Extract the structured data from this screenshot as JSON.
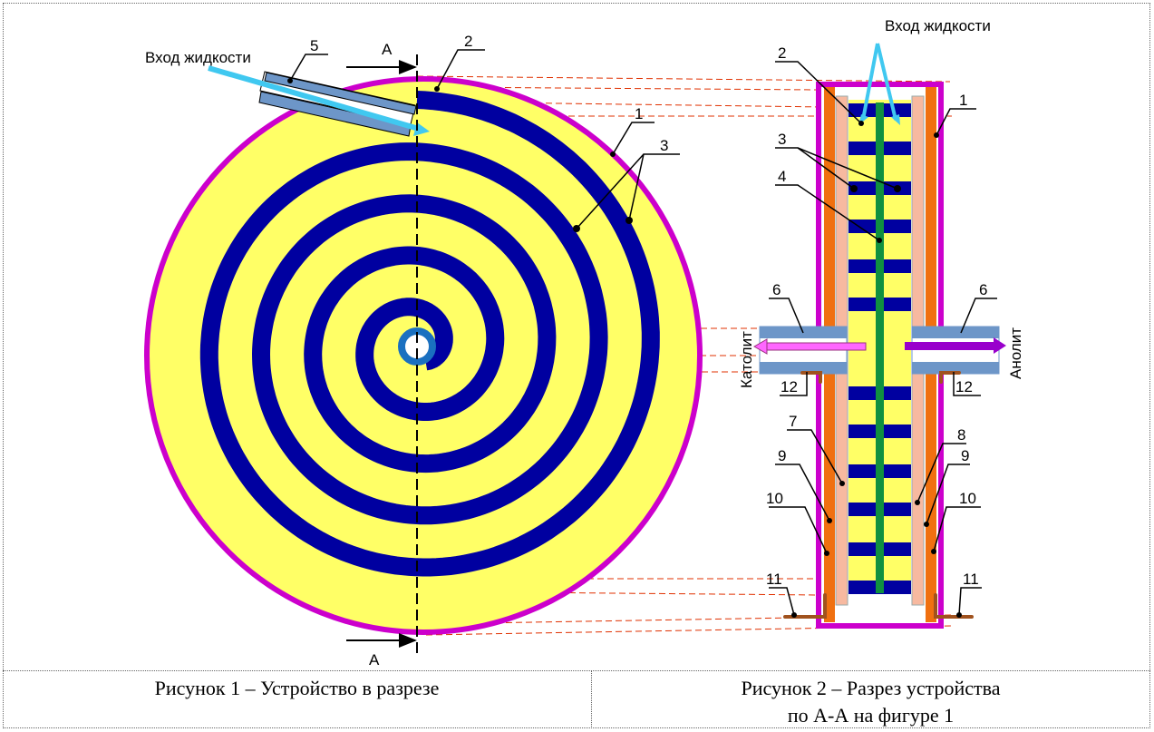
{
  "figure1": {
    "inlet_label": "Вход жидкости",
    "section_mark_top": "А",
    "section_mark_bottom": "А",
    "callouts": {
      "n5": "5",
      "n2": "2",
      "n1": "1",
      "n3": "3"
    }
  },
  "figure2": {
    "inlet_label": "Вход жидкости",
    "catholyte": "Католит",
    "anolyte": "Анолит",
    "callouts": {
      "n2": "2",
      "n1": "1",
      "n3": "3",
      "n4": "4",
      "n6_left": "6",
      "n6_right": "6",
      "n12_left": "12",
      "n12_right": "12",
      "n7": "7",
      "n8": "8",
      "n9_left": "9",
      "n9_right": "9",
      "n10_left": "10",
      "n10_right": "10",
      "n11_left": "11",
      "n11_right": "11"
    }
  },
  "captions": {
    "fig1": "Рисунок 1 – Устройство в разрезе",
    "fig2_line1": "Рисунок 2 – Разрез устройства",
    "fig2_line2": "по А-А на фигуре 1"
  },
  "colors": {
    "yellow": "#FFFF66",
    "spiral_blue": "#0000A0",
    "rim_magenta": "#CC00CC",
    "membrane_green": "#109040",
    "electrode_orange": "#F07010",
    "spacer_pink": "#F7B9A0",
    "pipe_blue": "#6D96C8",
    "inlet_cyan": "#40C8F0",
    "catholyte_pink": "#FF66FF",
    "anolyte_purple": "#9900CC",
    "terminal_brown": "#A0521E",
    "projection_red": "#E03000"
  }
}
